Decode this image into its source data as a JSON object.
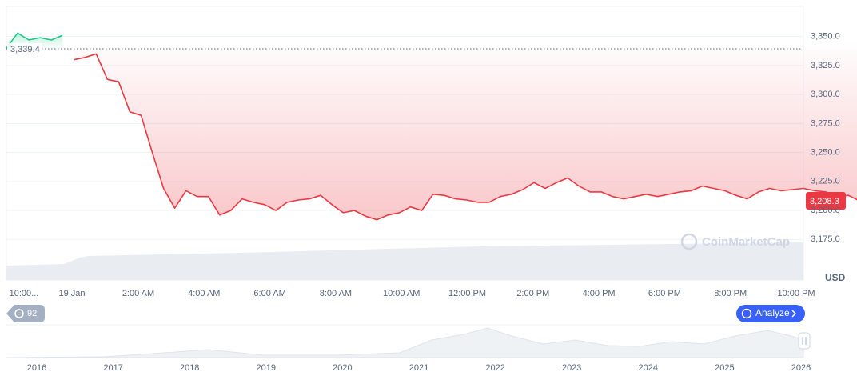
{
  "chart_data": {
    "type": "line",
    "series": [
      {
        "color": "#16c784",
        "values": [
          3340,
          3353,
          3347,
          3349,
          3347,
          3351,
          null,
          null,
          null,
          null,
          null,
          null,
          null,
          null,
          null,
          null,
          null,
          null,
          null,
          null,
          null,
          null,
          null,
          null,
          null,
          null,
          null,
          null,
          null,
          null,
          null,
          null,
          null,
          null,
          null,
          null,
          null,
          null,
          null,
          null,
          null,
          null,
          null,
          null,
          null,
          null,
          null,
          null,
          null,
          null,
          null,
          null,
          null,
          null,
          null,
          null,
          null,
          null,
          null,
          null,
          null,
          null,
          null,
          null,
          null,
          null,
          null,
          null,
          null,
          null,
          null,
          null
        ]
      },
      {
        "color": "#ea3943",
        "values": [
          null,
          null,
          null,
          null,
          null,
          null,
          3330,
          3332,
          3335,
          3313,
          3311,
          3285,
          3282,
          3250,
          3219,
          3202,
          3217,
          3212,
          3212,
          3196,
          3200,
          3210,
          3207,
          3205,
          3200,
          3207,
          3209,
          3210,
          3213,
          3205,
          3198,
          3200,
          3195,
          3192,
          3196,
          3198,
          3203,
          3200,
          3214,
          3213,
          3210,
          3209,
          3207,
          3207,
          3212,
          3214,
          3218,
          3224,
          3219,
          3224,
          3228,
          3221,
          3216,
          3216,
          3212,
          3210,
          3212,
          3214,
          3212,
          3214,
          3216,
          3217,
          3221,
          3219,
          3217,
          3213,
          3210,
          3216,
          3219,
          3217,
          3218,
          3219,
          3217,
          3216,
          3212,
          3213,
          3208.3
        ]
      }
    ],
    "x_labels": [
      "10:00...",
      "19 Jan",
      "2:00 AM",
      "4:00 AM",
      "6:00 AM",
      "8:00 AM",
      "10:00 AM",
      "12:00 PM",
      "2:00 PM",
      "4:00 PM",
      "6:00 PM",
      "8:00 PM",
      "10:00 PM"
    ],
    "ylim": [
      3140,
      3376
    ],
    "yticks": [
      {
        "value": 3175,
        "label": "3,175.0"
      },
      {
        "value": 3200,
        "label": "3,200.0"
      },
      {
        "value": 3225,
        "label": "3,225.0"
      },
      {
        "value": 3250,
        "label": "3,250.0"
      },
      {
        "value": 3275,
        "label": "3,275.0"
      },
      {
        "value": 3300,
        "label": "3,300.0"
      },
      {
        "value": 3325,
        "label": "3,325.0"
      },
      {
        "value": 3350,
        "label": "3,350.0"
      }
    ],
    "grid": true,
    "baseline": {
      "value": 3339.4,
      "label": "3,339.4"
    },
    "last_price": {
      "value": 3208.3,
      "label": "3,208.3"
    },
    "currency": "USD",
    "watermark": "CoinMarketCap",
    "history_count": "92",
    "analyze_button": "Analyze",
    "navigator_years": [
      "2016",
      "2017",
      "2018",
      "2019",
      "2020",
      "2021",
      "2022",
      "2023",
      "2024",
      "2025",
      "2026"
    ]
  }
}
